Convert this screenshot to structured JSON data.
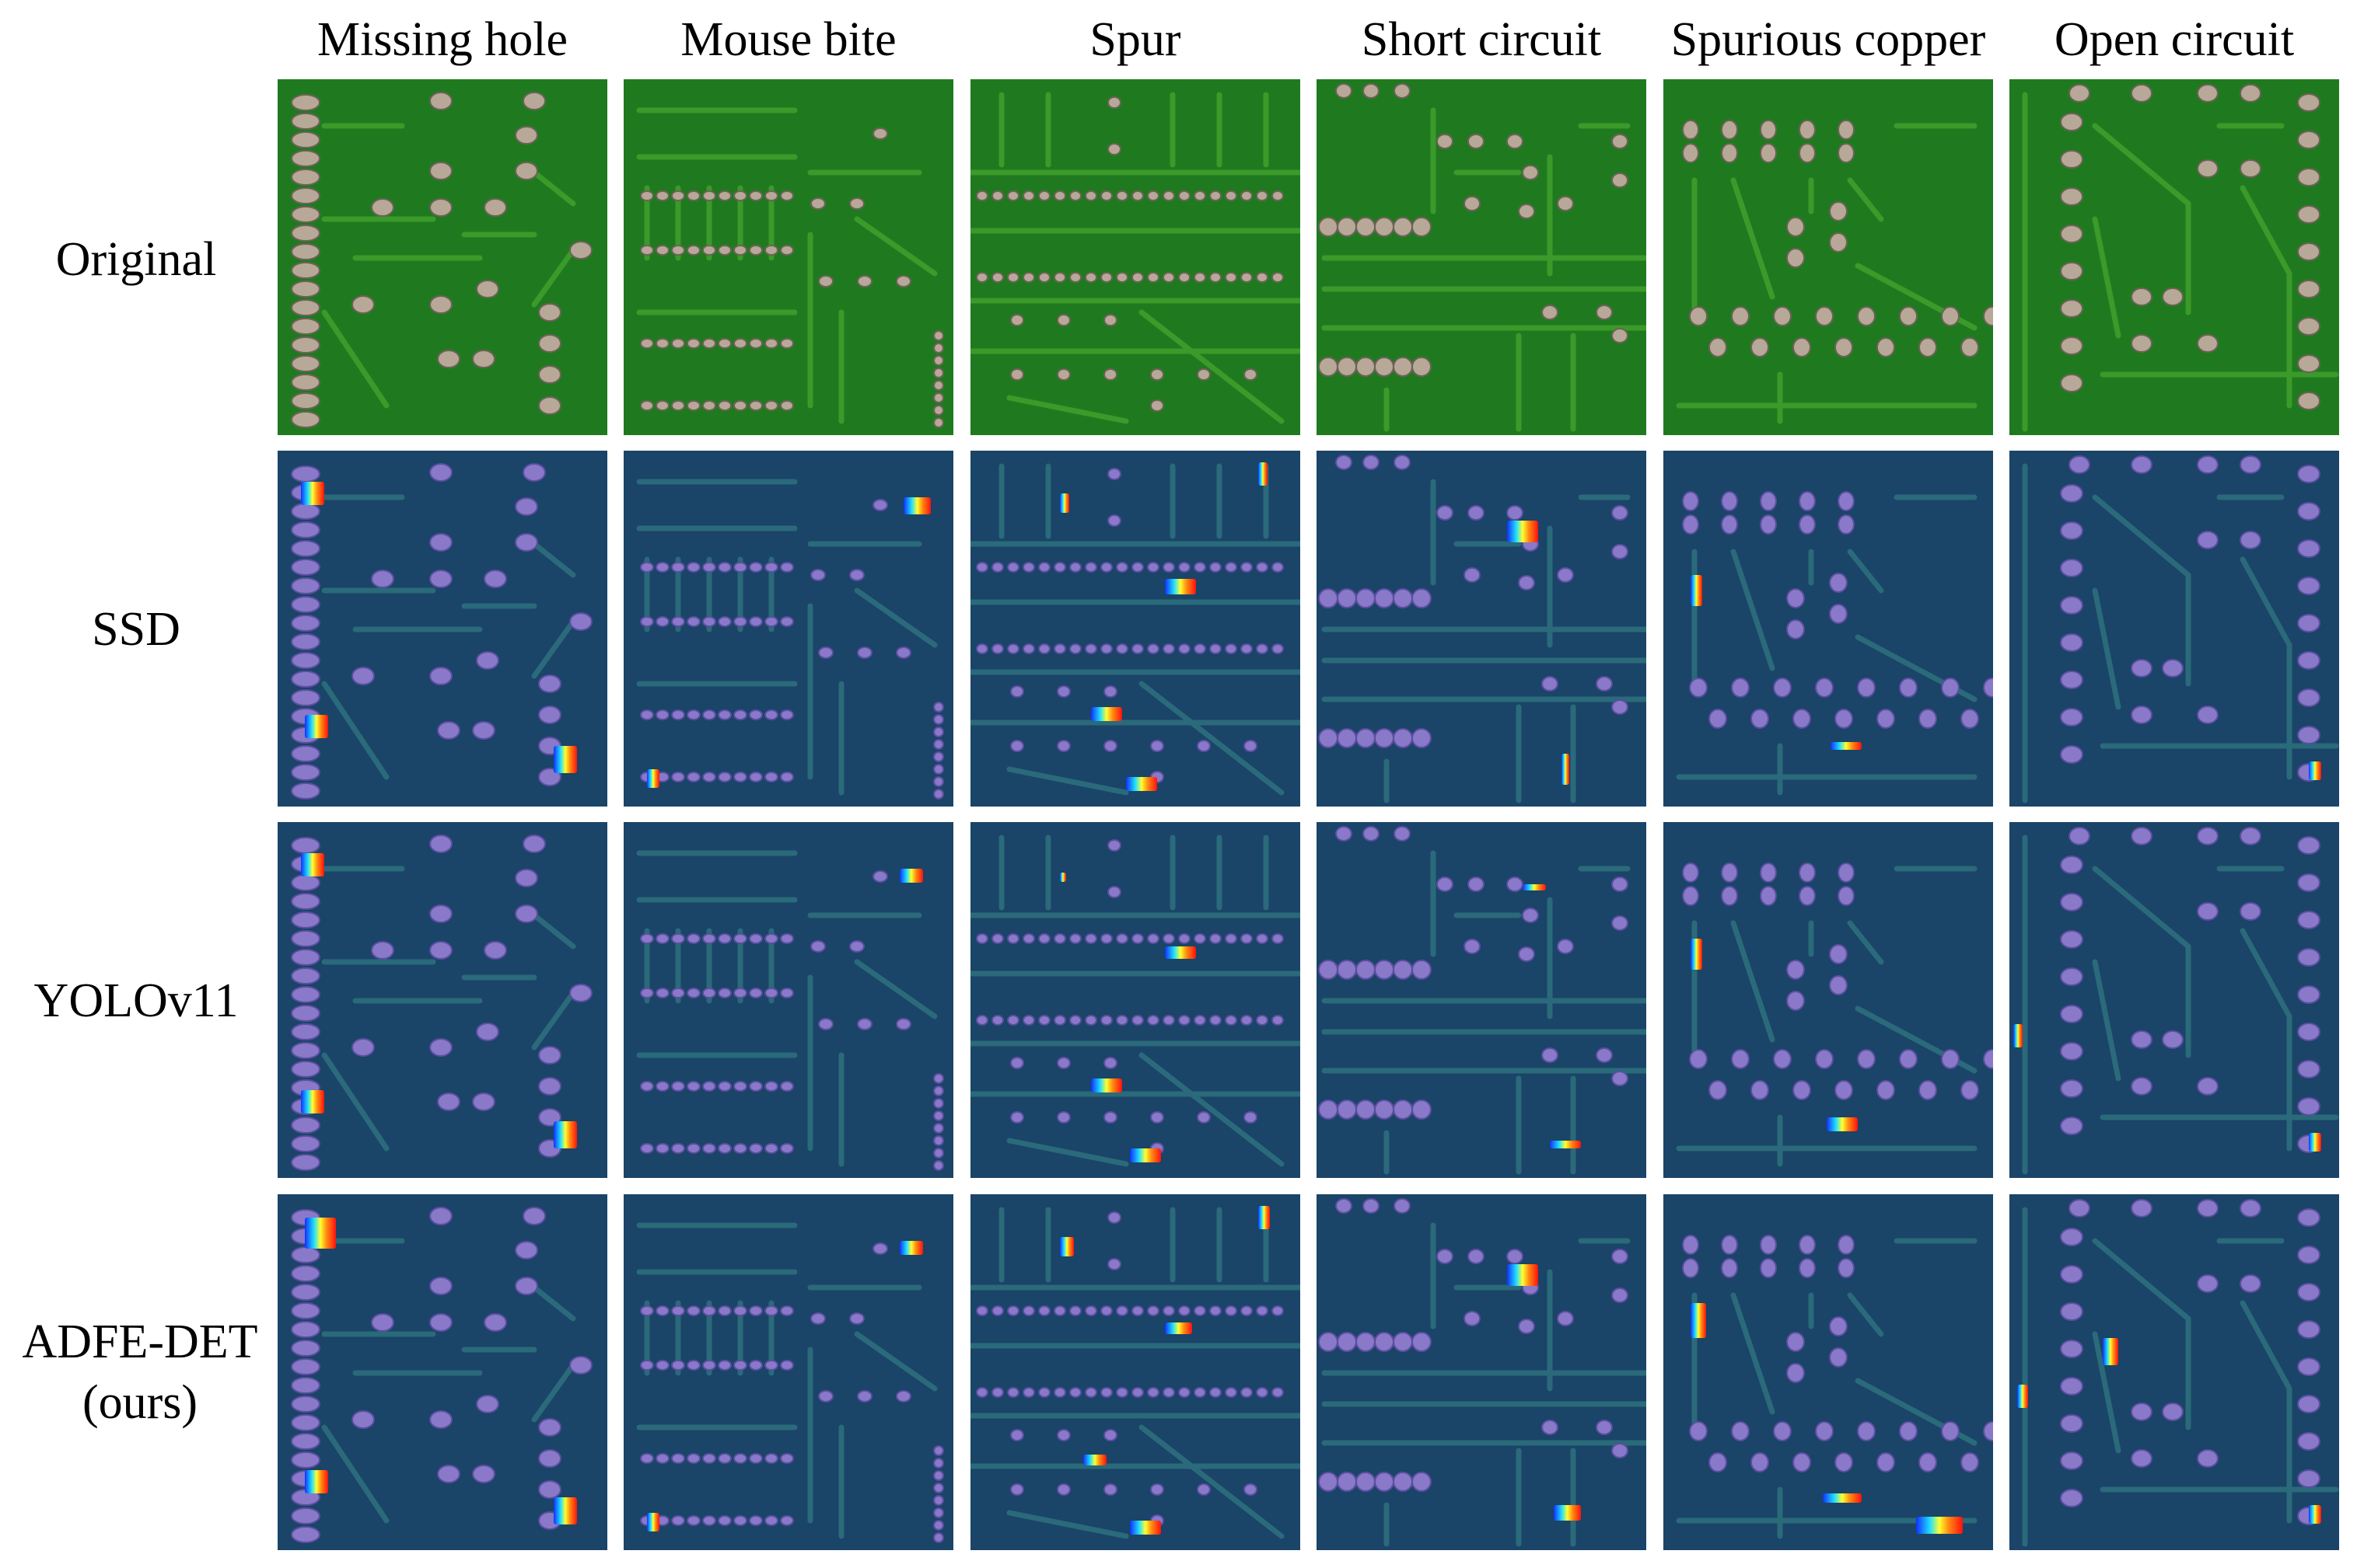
{
  "columns": [
    {
      "label": "Missing hole"
    },
    {
      "label": "Mouse bite"
    },
    {
      "label": "Spur"
    },
    {
      "label": "Short circuit"
    },
    {
      "label": "Spurious copper"
    },
    {
      "label": "Open circuit"
    }
  ],
  "rows": [
    {
      "label": "Original",
      "style": "original"
    },
    {
      "label": "SSD",
      "style": "heatmap"
    },
    {
      "label": "YOLOv11",
      "style": "heatmap"
    },
    {
      "label": "ADFE-DET (ours)",
      "style": "heatmap"
    }
  ],
  "colors": {
    "pcb_green": "#1f7a1f",
    "pcb_trace": "#3a9a2a",
    "pad_metal": "#b8a898",
    "heat_base": "#1a4468",
    "heat_trace": "#2a6a7a",
    "heat_pad": "#8a78c8"
  },
  "boards": [
    "board-a-left-pad-column",
    "board-b-ic-pad-rows",
    "board-c-dense-pad-rows",
    "board-d-pad-groups",
    "board-e-pad-grid",
    "board-f-right-pad-column"
  ]
}
